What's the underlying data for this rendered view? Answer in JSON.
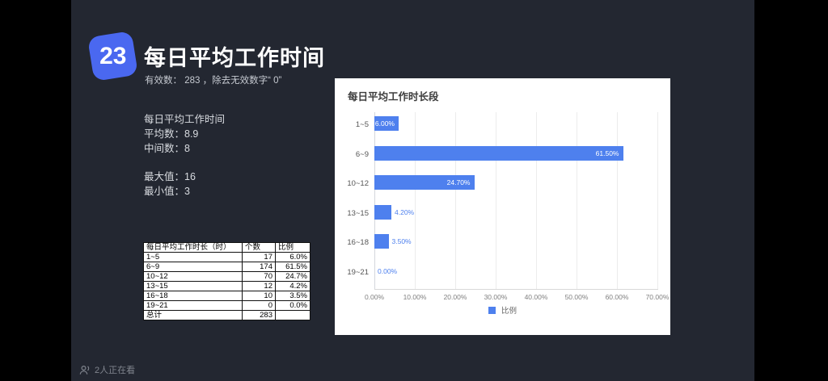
{
  "status_bar": {
    "viewers_text": "2人正在看"
  },
  "slide": {
    "badge_number": "23",
    "title": "每日平均工作时间",
    "subtitle": "有效数： 283 ，除去无效数字“ 0”",
    "stats": {
      "heading": "每日平均工作时间",
      "lines": [
        "平均数：8.9",
        "中间数：8",
        "最大值：16",
        "最小值：3"
      ]
    },
    "table": {
      "headers": [
        "每日平均工作时长（时）",
        "个数",
        "比例"
      ],
      "rows": [
        [
          "1~5",
          "17",
          "6.0%"
        ],
        [
          "6~9",
          "174",
          "61.5%"
        ],
        [
          "10~12",
          "70",
          "24.7%"
        ],
        [
          "13~15",
          "12",
          "4.2%"
        ],
        [
          "16~18",
          "10",
          "3.5%"
        ],
        [
          "19~21",
          "0",
          "0.0%"
        ],
        [
          "总计",
          "283",
          ""
        ]
      ]
    }
  },
  "chart_data": {
    "type": "bar",
    "orientation": "horizontal",
    "title": "每日平均工作时长段",
    "categories": [
      "1~5",
      "6~9",
      "10~12",
      "13~15",
      "16~18",
      "19~21"
    ],
    "series": [
      {
        "name": "比例",
        "values": [
          6.0,
          61.5,
          24.7,
          4.2,
          3.5,
          0.0
        ]
      }
    ],
    "value_labels": [
      "6.00%",
      "61.50%",
      "24.70%",
      "4.20%",
      "3.50%",
      "0.00%"
    ],
    "x_ticks": [
      "0.00%",
      "10.00%",
      "20.00%",
      "30.00%",
      "40.00%",
      "50.00%",
      "60.00%",
      "70.00%"
    ],
    "xlim": [
      0,
      70
    ],
    "grid": true,
    "legend": [
      "比例"
    ],
    "legend_position": "bottom"
  },
  "colors": {
    "badge_blue": "#4a68f0",
    "bar_blue": "#4e80ee",
    "slide_bg": "#232731",
    "panel_bg": "#ffffff"
  }
}
